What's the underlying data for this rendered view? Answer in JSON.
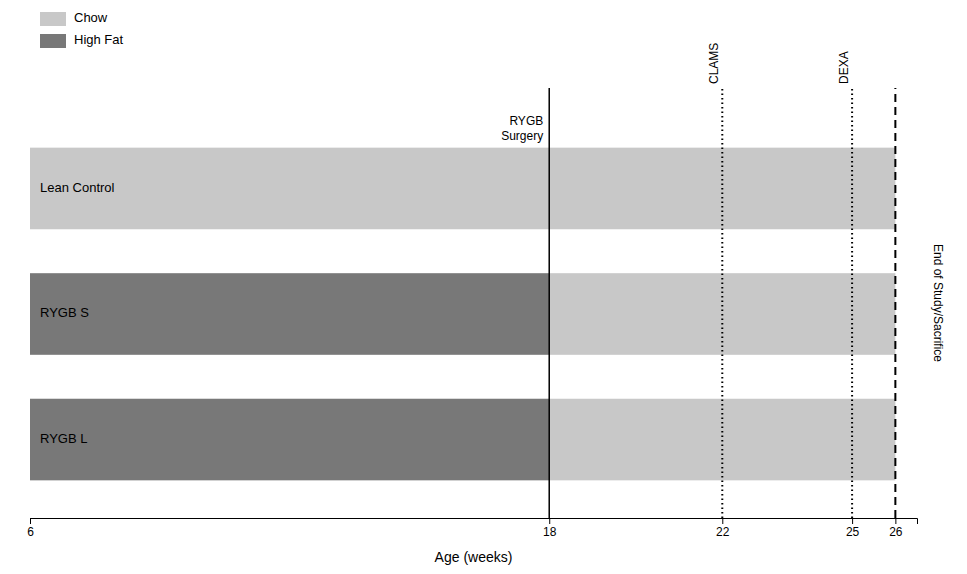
{
  "chart_data": {
    "type": "gantt",
    "orientation": "horizontal",
    "xlabel": "Age (weeks)",
    "categories": [
      "Lean Control",
      "RYGB S",
      "RYGB L"
    ],
    "series": [
      {
        "name": "Chow",
        "color": "#c8c8c8",
        "start": [
          6,
          18,
          18
        ],
        "end": [
          26,
          26,
          26
        ]
      },
      {
        "name": "High Fat",
        "color": "#787878",
        "start": [
          null,
          6,
          6
        ],
        "end": [
          null,
          18,
          18
        ]
      }
    ],
    "annotations": [
      {
        "x": 18,
        "text": "RYGB\nSurgery",
        "line_style": "solid"
      },
      {
        "x": 22,
        "text": "CLAMS",
        "line_style": "dotted"
      },
      {
        "x": 25,
        "text": "DEXA",
        "line_style": "dotted"
      },
      {
        "x": 26,
        "text": "End of Study/Sacrifice",
        "line_style": "dashed"
      }
    ],
    "xlim": [
      6,
      26.5
    ],
    "xticks": [
      6,
      18,
      22,
      25,
      26
    ],
    "grid": false,
    "legend": "upper left"
  }
}
